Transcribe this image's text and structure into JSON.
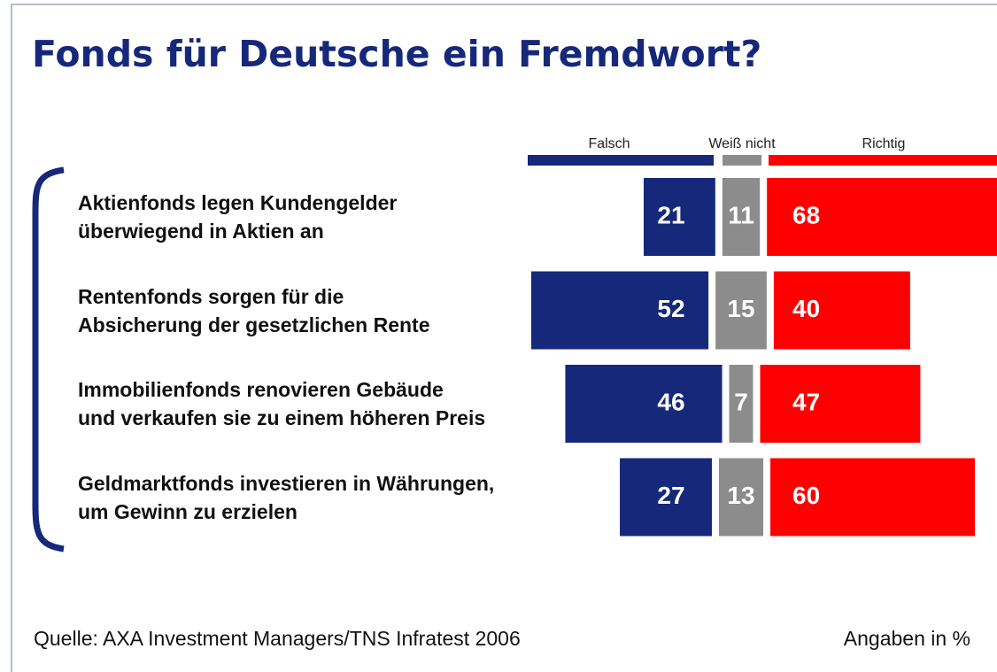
{
  "chart_data": {
    "type": "diverging_bar",
    "title": "Fonds für Deutsche ein Fremdwort?",
    "categories": [
      "Aktienfonds legen Kundengelder\nüberwiegend in Aktien an",
      "Rentenfonds sorgen für die\nAbsicherung der gesetzlichen Rente",
      "Immobilienfonds renovieren Gebäude\nund verkaufen sie zu einem höheren Preis",
      "Geldmarktfonds investieren in Währungen,\num Gewinn zu erzielen"
    ],
    "series": [
      {
        "name": "Falsch",
        "color": "#16287a",
        "values": [
          21,
          52,
          46,
          27
        ]
      },
      {
        "name": "Weiß nicht",
        "color": "#8c8c8c",
        "values": [
          11,
          15,
          7,
          13
        ]
      },
      {
        "name": "Richtig",
        "color": "#ff0000",
        "values": [
          68,
          40,
          47,
          60
        ]
      }
    ],
    "source": "Quelle: AXA Investment Managers/TNS Infratest 2006",
    "note": "Angaben in %"
  }
}
